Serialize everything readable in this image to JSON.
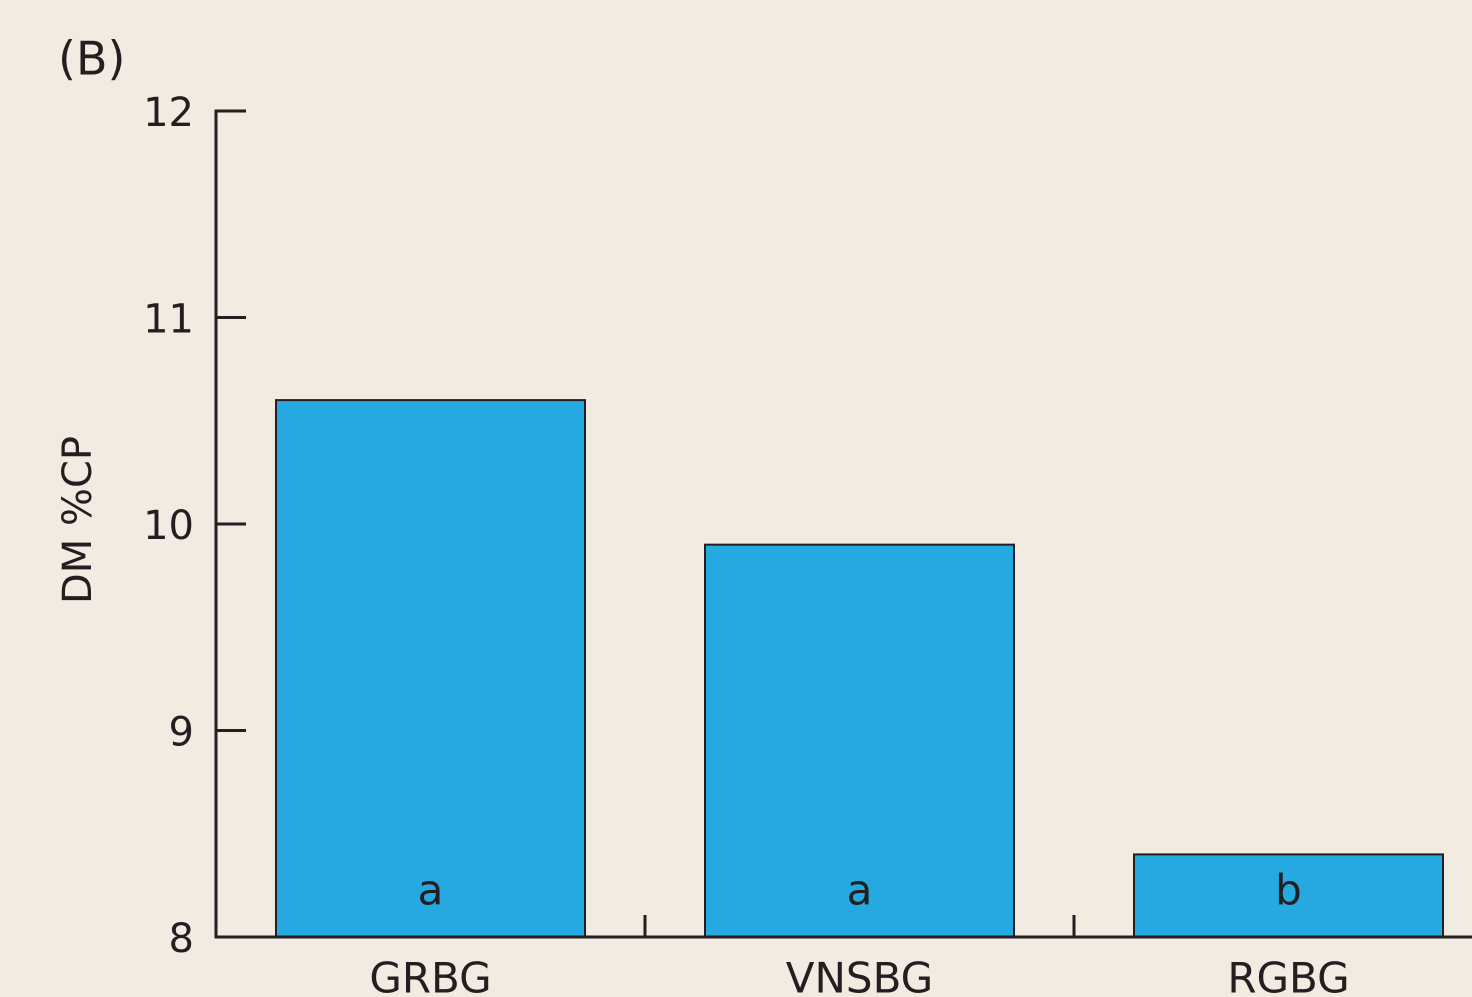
{
  "chart_data": {
    "type": "bar",
    "panel_label": "(B)",
    "ylabel": "DM %CP",
    "categories": [
      "GRBG",
      "VNSBG",
      "RGBG"
    ],
    "values": [
      10.6,
      9.9,
      8.4
    ],
    "bar_labels": [
      "a",
      "a",
      "b"
    ],
    "color": "#25a9e0",
    "ylim": [
      8,
      12
    ],
    "yticks": [
      8,
      9,
      10,
      11,
      12
    ]
  }
}
